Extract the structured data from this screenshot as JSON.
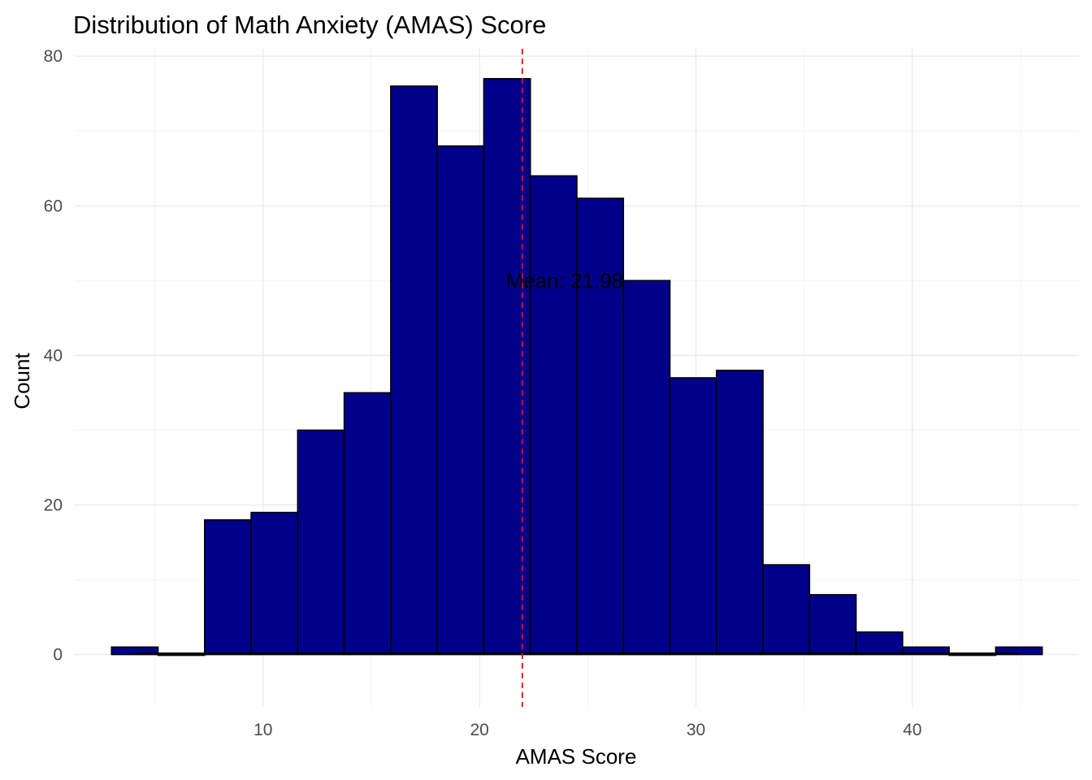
{
  "chart_data": {
    "type": "bar",
    "title": "Distribution of Math Anxiety (AMAS) Score",
    "xlabel": "AMAS Score",
    "ylabel": "Count",
    "xlim": [
      1.3,
      47.7
    ],
    "ylim": [
      -7,
      81
    ],
    "x_ticks": [
      10,
      20,
      30,
      40
    ],
    "y_ticks": [
      0,
      20,
      40,
      60,
      80
    ],
    "grid": true,
    "bins": [
      {
        "x0": 3.0,
        "x1": 5.15,
        "count": 1
      },
      {
        "x0": 5.15,
        "x1": 7.3,
        "count": 0
      },
      {
        "x0": 7.3,
        "x1": 9.45,
        "count": 18
      },
      {
        "x0": 9.45,
        "x1": 11.6,
        "count": 19
      },
      {
        "x0": 11.6,
        "x1": 13.75,
        "count": 30
      },
      {
        "x0": 13.75,
        "x1": 15.9,
        "count": 35
      },
      {
        "x0": 15.9,
        "x1": 18.05,
        "count": 76
      },
      {
        "x0": 18.05,
        "x1": 20.2,
        "count": 68
      },
      {
        "x0": 20.2,
        "x1": 22.35,
        "count": 77
      },
      {
        "x0": 22.35,
        "x1": 24.5,
        "count": 64
      },
      {
        "x0": 24.5,
        "x1": 26.65,
        "count": 61
      },
      {
        "x0": 26.65,
        "x1": 28.8,
        "count": 50
      },
      {
        "x0": 28.8,
        "x1": 30.95,
        "count": 37
      },
      {
        "x0": 30.95,
        "x1": 33.1,
        "count": 38
      },
      {
        "x0": 33.1,
        "x1": 35.25,
        "count": 12
      },
      {
        "x0": 35.25,
        "x1": 37.4,
        "count": 8
      },
      {
        "x0": 37.4,
        "x1": 39.55,
        "count": 3
      },
      {
        "x0": 39.55,
        "x1": 41.7,
        "count": 1
      },
      {
        "x0": 41.7,
        "x1": 43.85,
        "count": 0
      },
      {
        "x0": 43.85,
        "x1": 46.0,
        "count": 1
      }
    ],
    "mean_value": 21.98,
    "mean_label": "Mean: 21.98",
    "mean_label_y": 50,
    "colors": {
      "bar_fill": "#00008B",
      "bar_outline": "#000000",
      "mean_line": "#FF0000"
    }
  }
}
